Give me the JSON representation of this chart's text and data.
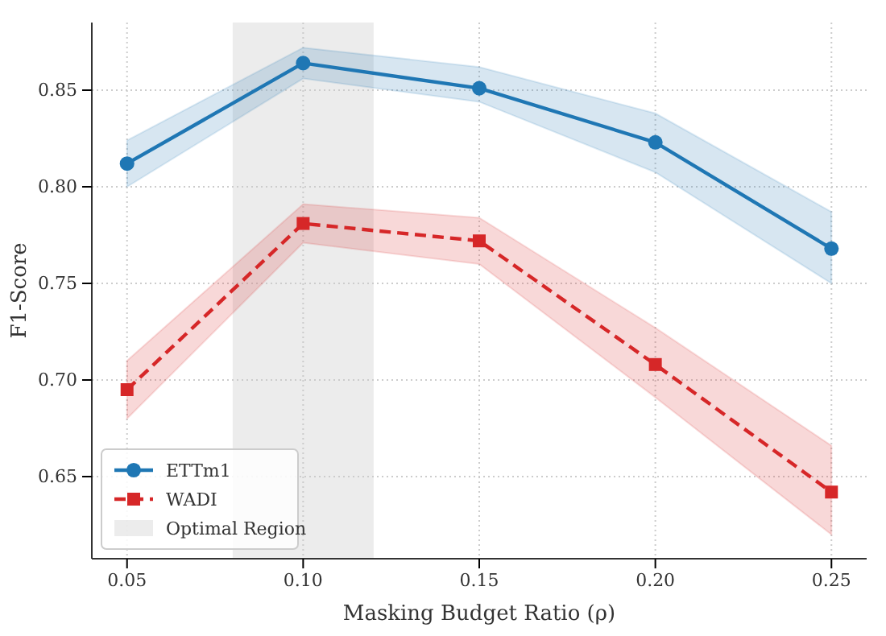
{
  "chart_data": {
    "type": "line",
    "xlabel": "Masking Budget Ratio (ρ)",
    "ylabel": "F1-Score",
    "x": [
      0.05,
      0.1,
      0.15,
      0.2,
      0.25
    ],
    "series": [
      {
        "name": "ETTm1",
        "color": "#1f77b4",
        "values": [
          0.812,
          0.864,
          0.851,
          0.823,
          0.768
        ],
        "lower": [
          0.8,
          0.856,
          0.844,
          0.8075,
          0.75
        ],
        "upper": [
          0.824,
          0.872,
          0.862,
          0.838,
          0.787
        ],
        "marker": "circle",
        "line_style": "solid"
      },
      {
        "name": "WADI",
        "color": "#d62728",
        "values": [
          0.695,
          0.781,
          0.772,
          0.708,
          0.642
        ],
        "lower": [
          0.68,
          0.771,
          0.76,
          0.691,
          0.62
        ],
        "upper": [
          0.71,
          0.791,
          0.784,
          0.727,
          0.666
        ],
        "marker": "square",
        "line_style": "dashed"
      }
    ],
    "bands": [
      {
        "axis": "x",
        "from": 0.08,
        "to": 0.12,
        "label": "Optimal Region",
        "color": "#d9d9d9"
      }
    ],
    "xlim": [
      0.04,
      0.26
    ],
    "xticks": [
      {
        "value": 0.05,
        "label": "0.05"
      },
      {
        "value": 0.1,
        "label": "0.10"
      },
      {
        "value": 0.15,
        "label": "0.15"
      },
      {
        "value": 0.2,
        "label": "0.20"
      },
      {
        "value": 0.25,
        "label": "0.25"
      }
    ],
    "ylim": [
      0.6075,
      0.885
    ],
    "yticks": [
      {
        "value": 0.65,
        "label": "0.65"
      },
      {
        "value": 0.7,
        "label": "0.70"
      },
      {
        "value": 0.75,
        "label": "0.75"
      },
      {
        "value": 0.8,
        "label": "0.80"
      },
      {
        "value": 0.85,
        "label": "0.85"
      }
    ],
    "grid": true,
    "legend": "bottom left"
  }
}
